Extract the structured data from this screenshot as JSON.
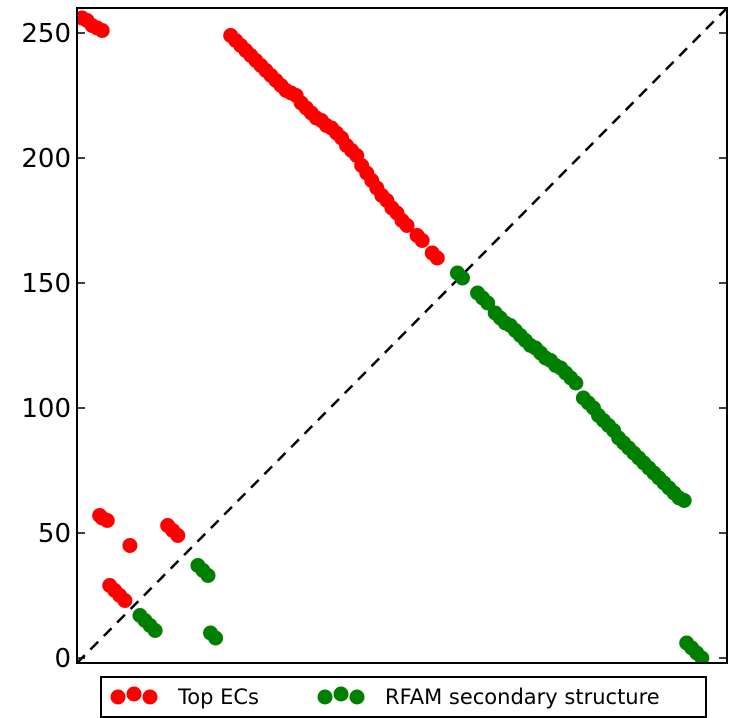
{
  "chart_data": {
    "type": "scatter",
    "xlim": [
      0,
      258
    ],
    "ylim": [
      -2,
      260
    ],
    "yticks": [
      0,
      50,
      100,
      150,
      200,
      250
    ],
    "grid": false,
    "legend_placement": "below",
    "diagonal": {
      "style": "dashed",
      "color": "#000000",
      "from": [
        0,
        -2
      ],
      "to": [
        258,
        260
      ]
    },
    "series": [
      {
        "name": "Top ECs",
        "color": "#ff0000",
        "points": [
          [
            2,
            256
          ],
          [
            4,
            255
          ],
          [
            6,
            253
          ],
          [
            8,
            252
          ],
          [
            10,
            251
          ],
          [
            9,
            57
          ],
          [
            10,
            56
          ],
          [
            12,
            55
          ],
          [
            13,
            29
          ],
          [
            15,
            27
          ],
          [
            17,
            25
          ],
          [
            19,
            23
          ],
          [
            21,
            45
          ],
          [
            36,
            53
          ],
          [
            38,
            51
          ],
          [
            40,
            49
          ],
          [
            61,
            249
          ],
          [
            63,
            247
          ],
          [
            65,
            245
          ],
          [
            67,
            243
          ],
          [
            69,
            241
          ],
          [
            71,
            239
          ],
          [
            73,
            237
          ],
          [
            75,
            235
          ],
          [
            77,
            233
          ],
          [
            79,
            231
          ],
          [
            81,
            229
          ],
          [
            83,
            227
          ],
          [
            85,
            226
          ],
          [
            87,
            225
          ],
          [
            89,
            222
          ],
          [
            91,
            220
          ],
          [
            93,
            218
          ],
          [
            95,
            216
          ],
          [
            97,
            215
          ],
          [
            99,
            213
          ],
          [
            101,
            212
          ],
          [
            103,
            210
          ],
          [
            105,
            208
          ],
          [
            107,
            205
          ],
          [
            109,
            203
          ],
          [
            111,
            201
          ],
          [
            113,
            197
          ],
          [
            115,
            194
          ],
          [
            117,
            191
          ],
          [
            119,
            188
          ],
          [
            121,
            185
          ],
          [
            123,
            183
          ],
          [
            125,
            180
          ],
          [
            127,
            178
          ],
          [
            129,
            175
          ],
          [
            131,
            173
          ],
          [
            135,
            169
          ],
          [
            137,
            167
          ],
          [
            141,
            162
          ],
          [
            143,
            160
          ]
        ]
      },
      {
        "name": "RFAM secondary structure",
        "color": "#008000",
        "points": [
          [
            25,
            17
          ],
          [
            27,
            15
          ],
          [
            29,
            13
          ],
          [
            31,
            11
          ],
          [
            48,
            37
          ],
          [
            50,
            35
          ],
          [
            52,
            33
          ],
          [
            53,
            10
          ],
          [
            55,
            8
          ],
          [
            151,
            154
          ],
          [
            153,
            152
          ],
          [
            159,
            146
          ],
          [
            161,
            144
          ],
          [
            163,
            142
          ],
          [
            166,
            138
          ],
          [
            168,
            136
          ],
          [
            170,
            134
          ],
          [
            172,
            133
          ],
          [
            174,
            131
          ],
          [
            176,
            129
          ],
          [
            178,
            127
          ],
          [
            180,
            125
          ],
          [
            182,
            124
          ],
          [
            184,
            122
          ],
          [
            186,
            120
          ],
          [
            188,
            119
          ],
          [
            190,
            117
          ],
          [
            192,
            116
          ],
          [
            194,
            114
          ],
          [
            196,
            112
          ],
          [
            198,
            110
          ],
          [
            201,
            104
          ],
          [
            203,
            102
          ],
          [
            205,
            100
          ],
          [
            207,
            97
          ],
          [
            209,
            95
          ],
          [
            211,
            93
          ],
          [
            213,
            91
          ],
          [
            215,
            88
          ],
          [
            217,
            86
          ],
          [
            219,
            84
          ],
          [
            221,
            82
          ],
          [
            223,
            80
          ],
          [
            225,
            78
          ],
          [
            227,
            76
          ],
          [
            229,
            74
          ],
          [
            231,
            72
          ],
          [
            233,
            70
          ],
          [
            235,
            68
          ],
          [
            237,
            66
          ],
          [
            239,
            64
          ],
          [
            241,
            63
          ],
          [
            242,
            6
          ],
          [
            244,
            4
          ],
          [
            246,
            2
          ],
          [
            248,
            0
          ]
        ]
      }
    ]
  }
}
